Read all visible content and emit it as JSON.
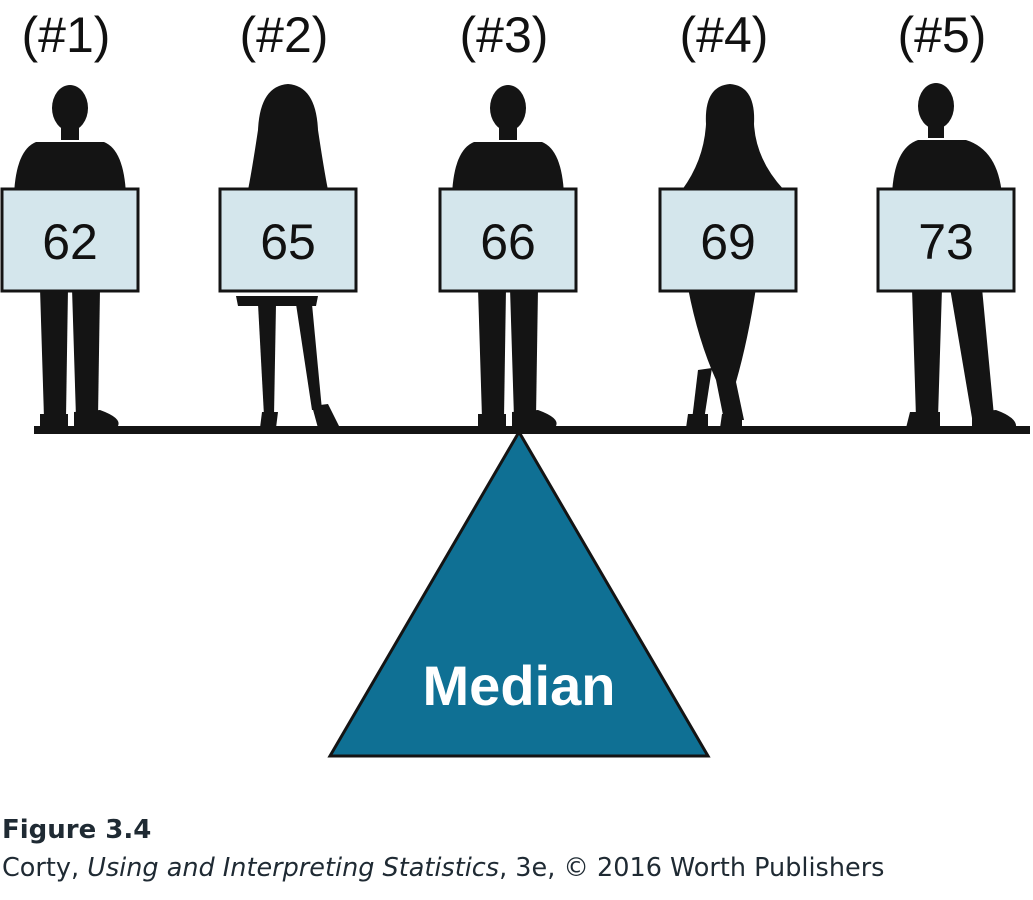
{
  "figure": {
    "people": [
      {
        "rank": "(#1)",
        "value": "62",
        "figure": "man-standing"
      },
      {
        "rank": "(#2)",
        "value": "65",
        "figure": "woman-long-hair"
      },
      {
        "rank": "(#3)",
        "value": "66",
        "figure": "man-standing"
      },
      {
        "rank": "(#4)",
        "value": "69",
        "figure": "woman-crossed-legs"
      },
      {
        "rank": "(#5)",
        "value": "73",
        "figure": "man-jacket"
      }
    ],
    "fulcrum_label": "Median",
    "colors": {
      "silhouette": "#141414",
      "sign_fill": "#d4e6ec",
      "sign_border": "#141414",
      "fulcrum": "#0f7094",
      "beam": "#141414"
    }
  },
  "caption": {
    "figure_number": "Figure 3.4",
    "author": "Corty, ",
    "book_title": "Using and Interpreting Statistics",
    "edition_rest": ", 3e, © 2016 Worth Publishers"
  }
}
